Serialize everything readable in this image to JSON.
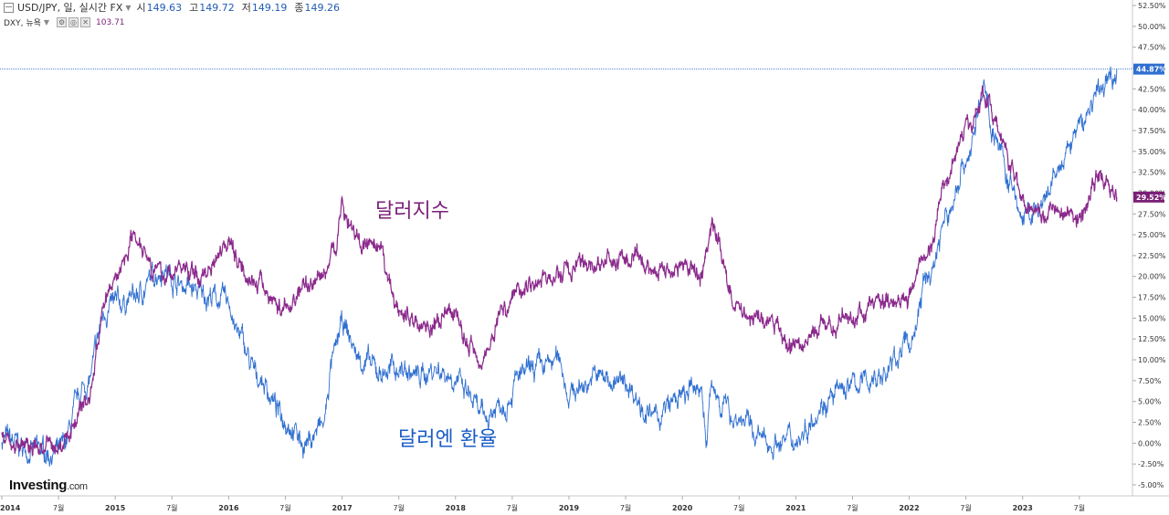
{
  "header": {
    "symbol": "USD/JPY, 일, 실시간 FX",
    "open_label": "시",
    "open": "149.63",
    "high_label": "고",
    "high": "149.72",
    "low_label": "저",
    "low": "149.19",
    "close_label": "종",
    "close": "149.26",
    "secondary_symbol": "DXY, 뉴욕",
    "secondary_value": "103.71"
  },
  "brand": {
    "name": "Investing",
    "domain": ".com"
  },
  "colors": {
    "usdjpy": "#2f6fd1",
    "dxy": "#8b2a8c",
    "usdjpy_label": "#1a5cc8",
    "dxy_label": "#7a1f76"
  },
  "chart_data": {
    "type": "line",
    "y_unit": "percent",
    "ylim": [
      -5.0,
      52.5
    ],
    "yticks": [
      "52.50%",
      "50.00%",
      "47.50%",
      "45.00%",
      "42.50%",
      "40.00%",
      "37.50%",
      "35.00%",
      "32.50%",
      "30.00%",
      "27.50%",
      "25.00%",
      "22.50%",
      "20.00%",
      "17.50%",
      "15.00%",
      "12.50%",
      "10.00%",
      "7.50%",
      "5.00%",
      "2.50%",
      "0.00%",
      "-2.50%",
      "-5.00%"
    ],
    "xticks": [
      "2014",
      "7월",
      "2015",
      "7월",
      "2016",
      "7월",
      "2017",
      "7월",
      "2018",
      "7월",
      "2019",
      "7월",
      "2020",
      "7월",
      "2021",
      "7월",
      "2022",
      "7월",
      "2023",
      "7월"
    ],
    "annotations": [
      {
        "text": "달러지수",
        "series": "DXY"
      },
      {
        "text": "달러엔 환율",
        "series": "USD/JPY"
      }
    ],
    "last_value_labels": {
      "usdjpy": "44.87%",
      "dxy": "29.52%"
    },
    "x": [
      2014.0,
      2014.25,
      2014.5,
      2014.75,
      2014.92,
      2015.0,
      2015.17,
      2015.42,
      2015.58,
      2015.75,
      2016.0,
      2016.08,
      2016.25,
      2016.5,
      2016.67,
      2016.83,
      2016.92,
      2017.0,
      2017.17,
      2017.33,
      2017.5,
      2017.67,
      2017.83,
      2018.0,
      2018.08,
      2018.25,
      2018.42,
      2018.58,
      2018.75,
      2018.92,
      2019.0,
      2019.25,
      2019.5,
      2019.75,
      2020.0,
      2020.17,
      2020.21,
      2020.25,
      2020.5,
      2020.75,
      2021.0,
      2021.25,
      2021.5,
      2021.75,
      2022.0,
      2022.17,
      2022.33,
      2022.5,
      2022.67,
      2022.75,
      2022.92,
      2023.0,
      2023.17,
      2023.33,
      2023.5,
      2023.67,
      2023.83
    ],
    "series": [
      {
        "name": "USD/JPY",
        "values": [
          0.5,
          -0.8,
          -1.2,
          7.0,
          16.0,
          16.5,
          17.5,
          21.0,
          19.0,
          18.0,
          17.0,
          13.0,
          8.0,
          3.0,
          0.0,
          2.0,
          10.0,
          14.0,
          10.0,
          8.5,
          9.0,
          8.0,
          9.0,
          8.0,
          6.0,
          3.0,
          5.0,
          8.0,
          9.0,
          10.0,
          6.0,
          8.0,
          7.0,
          3.0,
          5.5,
          7.0,
          0.0,
          6.0,
          3.0,
          0.0,
          0.5,
          5.0,
          7.0,
          8.0,
          12.0,
          20.0,
          27.0,
          34.0,
          42.0,
          37.0,
          30.0,
          27.0,
          28.0,
          33.0,
          38.0,
          42.0,
          44.87
        ]
      },
      {
        "name": "DXY",
        "values": [
          0.5,
          -0.5,
          -0.5,
          5.0,
          17.0,
          20.0,
          25.0,
          20.0,
          21.0,
          20.0,
          24.5,
          22.0,
          19.0,
          16.0,
          19.0,
          20.0,
          23.0,
          28.0,
          24.0,
          22.5,
          16.0,
          14.5,
          14.0,
          16.0,
          12.0,
          10.5,
          16.0,
          19.0,
          19.5,
          20.0,
          21.0,
          21.5,
          22.0,
          21.0,
          21.0,
          20.5,
          23.0,
          26.0,
          16.0,
          14.5,
          11.5,
          14.0,
          15.0,
          17.0,
          18.0,
          23.0,
          32.0,
          38.0,
          42.0,
          38.0,
          33.0,
          29.0,
          28.0,
          28.0,
          27.0,
          32.0,
          29.52
        ]
      }
    ]
  }
}
